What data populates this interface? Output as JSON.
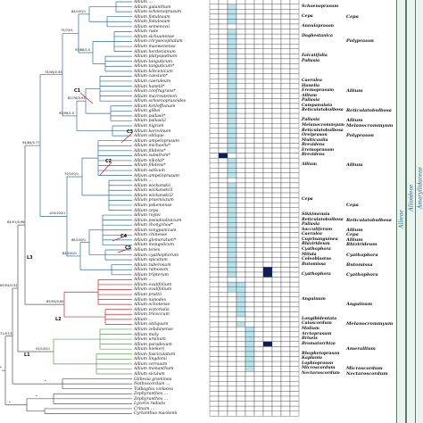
{
  "figure": {
    "taxa": [
      {
        "name": "Allium ...",
        "dark": [],
        "light": []
      },
      {
        "name": "Allium galanthum",
        "dark": [],
        "light": [
          2
        ]
      },
      {
        "name": "Allium schoenoprasum",
        "dark": [],
        "light": [
          2
        ]
      },
      {
        "name": "Allium fistulosum",
        "dark": [],
        "light": [
          2
        ]
      },
      {
        "name": "Allium fistulosum",
        "dark": [],
        "light": [
          2
        ]
      },
      {
        "name": "Allium semenovii",
        "dark": [],
        "light": []
      },
      {
        "name": "Allium rude",
        "dark": [],
        "light": [
          2
        ]
      },
      {
        "name": "Allium sichuanense",
        "dark": [],
        "light": [
          2
        ]
      },
      {
        "name": "Allium chrysocephalum",
        "dark": [],
        "light": [
          2
        ]
      },
      {
        "name": "Allium maowenense",
        "dark": [],
        "light": [
          2
        ]
      },
      {
        "name": "Allium herderianum",
        "dark": [],
        "light": [
          2
        ]
      },
      {
        "name": "Allium platyspathum",
        "dark": [],
        "light": [
          2
        ]
      },
      {
        "name": "Allium tanguticum",
        "dark": [],
        "light": [
          2
        ]
      },
      {
        "name": "Allium tanguticum*",
        "dark": [],
        "light": [
          2
        ]
      },
      {
        "name": "Allium kiltcenicum",
        "dark": [],
        "light": [
          2
        ]
      },
      {
        "name": "Allium caesium*",
        "dark": [],
        "light": [
          2
        ]
      },
      {
        "name": "Allium caeruleum",
        "dark": [],
        "light": [
          2
        ]
      },
      {
        "name": "Allium hanelii*",
        "dark": [],
        "light": [
          2
        ]
      },
      {
        "name": "Allium confragrans*",
        "dark": [],
        "light": [
          2
        ]
      },
      {
        "name": "Allium macrostemon",
        "dark": [],
        "light": [
          2
        ]
      },
      {
        "name": "Allium schoenoprasoides",
        "dark": [],
        "light": [
          2
        ]
      },
      {
        "name": "Allium kiriloffianum",
        "dark": [],
        "light": [
          2
        ]
      },
      {
        "name": "Allium gilbei",
        "dark": [],
        "light": [
          2
        ]
      },
      {
        "name": "Allium pallasii*",
        "dark": [],
        "light": [
          2
        ]
      },
      {
        "name": "Allium pallasii2",
        "dark": [],
        "light": [
          2
        ]
      },
      {
        "name": "Allium nigrum",
        "dark": [],
        "light": [
          2
        ]
      },
      {
        "name": "Allium korovinum",
        "dark": [],
        "light": [
          2
        ]
      },
      {
        "name": "Allium oblique",
        "dark": [],
        "light": [
          2
        ]
      },
      {
        "name": "Allium ampeloprasum",
        "dark": [],
        "light": [
          2
        ]
      },
      {
        "name": "Allium michaelis*",
        "dark": [],
        "light": [
          2
        ]
      },
      {
        "name": "Allium filidens*",
        "dark": [],
        "light": [
          2
        ]
      },
      {
        "name": "Allium subalrum*",
        "dark": [
          1
        ],
        "light": []
      },
      {
        "name": "Allium nikolai*",
        "dark": [],
        "light": [
          2
        ]
      },
      {
        "name": "Allium filidens*",
        "dark": [],
        "light": [
          2
        ]
      },
      {
        "name": "Allium sativum",
        "dark": [],
        "light": [
          2
        ]
      },
      {
        "name": "Allium ampeloprasum",
        "dark": [],
        "light": [
          2
        ]
      },
      {
        "name": "Allium ...",
        "dark": [],
        "light": []
      },
      {
        "name": "Allium wickanskii",
        "dark": [],
        "light": [
          2
        ]
      },
      {
        "name": "Allium wickanskii1",
        "dark": [],
        "light": [
          2
        ]
      },
      {
        "name": "Allium wickanskii2",
        "dark": [],
        "light": [
          2
        ]
      },
      {
        "name": "Allium praemixtum",
        "dark": [],
        "light": [
          2
        ]
      },
      {
        "name": "Allium pskemense",
        "dark": [],
        "light": [
          2
        ]
      },
      {
        "name": "Allium cepa",
        "dark": [],
        "light": [
          2
        ]
      },
      {
        "name": "Allium roylei",
        "dark": [],
        "light": [
          2
        ]
      },
      {
        "name": "Allium pseudoaltaicum",
        "dark": [],
        "light": [
          2
        ]
      },
      {
        "name": "Allium zhongzhoa*",
        "dark": [],
        "light": [
          2
        ]
      },
      {
        "name": "Allium songpanicum",
        "dark": [],
        "light": [
          2
        ]
      },
      {
        "name": "Allium chinense",
        "dark": [],
        "light": [
          2
        ]
      },
      {
        "name": "Allium glomeratum*",
        "dark": [],
        "light": [
          2
        ]
      },
      {
        "name": "Allium mongolicum",
        "dark": [],
        "light": [
          2
        ]
      },
      {
        "name": "Allium tenes",
        "dark": [],
        "light": [
          2
        ]
      },
      {
        "name": "Allium cyathophorum",
        "dark": [],
        "light": [
          2
        ]
      },
      {
        "name": "Allium spicatum",
        "dark": [],
        "light": [
          2
        ]
      },
      {
        "name": "Allium tuberosum",
        "dark": [],
        "light": [
          2
        ]
      },
      {
        "name": "Allium ramosum",
        "dark": [
          6
        ],
        "light": [
          2
        ]
      },
      {
        "name": "Allium tripterum",
        "dark": [
          6
        ],
        "light": [
          2
        ]
      },
      {
        "name": "Allium ...",
        "dark": [],
        "light": []
      },
      {
        "name": "Allium ovalifolium",
        "dark": [],
        "light": [
          2,
          3
        ]
      },
      {
        "name": "Allium ovalifolium",
        "dark": [],
        "light": [
          2,
          3
        ]
      },
      {
        "name": "Allium prattii",
        "dark": [],
        "light": [
          3
        ]
      },
      {
        "name": "Allium nanodes",
        "dark": [],
        "light": [
          3
        ]
      },
      {
        "name": "Allium ochotense",
        "dark": [],
        "light": [
          3
        ]
      },
      {
        "name": "Allium victorialis",
        "dark": [],
        "light": [
          3
        ]
      },
      {
        "name": "Allium tricoccum",
        "dark": [],
        "light": [
          3
        ]
      },
      {
        "name": "Allium ...",
        "dark": [],
        "light": []
      },
      {
        "name": "Allium obliquum",
        "dark": [],
        "light": [
          3
        ]
      },
      {
        "name": "Allium zebdanense",
        "dark": [],
        "light": [
          4
        ]
      },
      {
        "name": "Allium moly",
        "dark": [],
        "light": [
          4
        ]
      },
      {
        "name": "Allium ursinum",
        "dark": [],
        "light": [
          4
        ]
      },
      {
        "name": "Allium paradoxum",
        "dark": [
          6
        ],
        "light": [
          4
        ]
      },
      {
        "name": "Allium hookeri",
        "dark": [],
        "light": [
          4
        ]
      },
      {
        "name": "Allium fasciculatum",
        "dark": [],
        "light": [
          4
        ]
      },
      {
        "name": "Allium lingdonii",
        "dark": [],
        "light": [
          4
        ]
      },
      {
        "name": "Allium cernuum",
        "dark": [],
        "light": [
          4
        ]
      },
      {
        "name": "Allium monanthum",
        "dark": [],
        "light": [
          4
        ]
      },
      {
        "name": "Allium siculum",
        "dark": [],
        "light": []
      },
      {
        "name": "Gilliesia graminea",
        "dark": [],
        "light": []
      },
      {
        "name": "Nothoscordum ...",
        "dark": [],
        "light": []
      },
      {
        "name": "Tulbaghia violacea",
        "dark": [],
        "light": []
      },
      {
        "name": "Zephyranthes ...",
        "dark": [],
        "light": []
      },
      {
        "name": "Zephyranthes ...",
        "dark": [],
        "light": []
      },
      {
        "name": "Lycoris radiata",
        "dark": [],
        "light": []
      },
      {
        "name": "Crinum ...",
        "dark": [],
        "light": []
      },
      {
        "name": "Cyrtanthus mackenii",
        "dark": [],
        "light": []
      }
    ],
    "sections": [
      {
        "label": "Schoenoprasum",
        "row": 1
      },
      {
        "label": "Cepa",
        "row": 3
      },
      {
        "label": "Annuloprason",
        "row": 5
      },
      {
        "label": "Daghestanica",
        "row": 7
      },
      {
        "label": "Falcatifolia",
        "row": 11
      },
      {
        "label": "Pallasia",
        "row": 12
      },
      {
        "label": "Caerulea",
        "row": 16
      },
      {
        "label": "Hanelia",
        "row": 17
      },
      {
        "label": "Eremoprasum",
        "row": 18
      },
      {
        "label": "Allium",
        "row": 19
      },
      {
        "label": "Pallasia",
        "row": 20
      },
      {
        "label": "Campanulata",
        "row": 21
      },
      {
        "label": "Reticulatobulbosa",
        "row": 22
      },
      {
        "label": "Pallasia",
        "row": 24
      },
      {
        "label": "Melanocrommyum",
        "row": 25
      },
      {
        "label": "Reticulatobulbosa",
        "row": 26
      },
      {
        "label": "Oreiprason",
        "row": 27
      },
      {
        "label": "Multicaulia",
        "row": 28
      },
      {
        "label": "Brevidens",
        "row": 29
      },
      {
        "label": "Eremoprasum",
        "row": 30
      },
      {
        "label": "Brevidens",
        "row": 31
      },
      {
        "label": "Allium",
        "row": 33
      },
      {
        "label": "Cepa",
        "row": 40
      },
      {
        "label": "Sikkimensia",
        "row": 43
      },
      {
        "label": "Reticulatobulbosa",
        "row": 44
      },
      {
        "label": "Pallasia",
        "row": 45
      },
      {
        "label": "Sacculiferum",
        "row": 46
      },
      {
        "label": "Caerulea",
        "row": 47
      },
      {
        "label": "Cuprisanguinea",
        "row": 48
      },
      {
        "label": "Rhizirideum",
        "row": 49
      },
      {
        "label": "Cyathophora",
        "row": 50
      },
      {
        "label": "Milula",
        "row": 51
      },
      {
        "label": "Coleoblastus",
        "row": 52
      },
      {
        "label": "Butomissa",
        "row": 53
      },
      {
        "label": "Cyathophora",
        "row": 55
      },
      {
        "label": "Anguinum",
        "row": 60
      },
      {
        "label": "Longibidentata",
        "row": 64
      },
      {
        "label": "Caloscordum",
        "row": 65
      },
      {
        "label": "Molium",
        "row": 66
      },
      {
        "label": "Arctoprasum",
        "row": 67
      },
      {
        "label": "Briseis",
        "row": 68
      },
      {
        "label": "Bromatorrhiza",
        "row": 69
      },
      {
        "label": "Rhophetoprason",
        "row": 71
      },
      {
        "label": "Kaplania",
        "row": 72
      },
      {
        "label": "Lophioprason",
        "row": 73
      },
      {
        "label": "Microscordum",
        "row": 74
      },
      {
        "label": "Nectaroscordum",
        "row": 75
      }
    ],
    "subgenera": [
      {
        "label": "Cepa",
        "row": 3
      },
      {
        "label": "Polyprason",
        "row": 8
      },
      {
        "label": "Allium",
        "row": 18
      },
      {
        "label": "Reticulatobulbosa",
        "row": 22
      },
      {
        "label": "Allium",
        "row": 24
      },
      {
        "label": "Melanocrommyum",
        "row": 25
      },
      {
        "label": "Polyprason",
        "row": 27
      },
      {
        "label": "Allium",
        "row": 33
      },
      {
        "label": "Cepa",
        "row": 41
      },
      {
        "label": "Reticulatobulbosa",
        "row": 44
      },
      {
        "label": "Allium",
        "row": 46
      },
      {
        "label": "Cepa",
        "row": 47
      },
      {
        "label": "Allium",
        "row": 48
      },
      {
        "label": "Rhizirideum",
        "row": 49
      },
      {
        "label": "Cyathophora",
        "row": 51
      },
      {
        "label": "Butomissa",
        "row": 53
      },
      {
        "label": "Cyathophora",
        "row": 55
      },
      {
        "label": "Anguinum",
        "row": 61
      },
      {
        "label": "Melanocrommyum",
        "row": 65
      },
      {
        "label": "Amerallium",
        "row": 70
      },
      {
        "label": "Microscordum",
        "row": 74
      },
      {
        "label": "Nectaroscordum",
        "row": 75
      }
    ],
    "clades": {
      "c1": "C1",
      "c2": "C2",
      "c3": "C3",
      "c4": "C4",
      "c5": "C5",
      "l1": "L1",
      "l2": "L2",
      "l3": "L3"
    },
    "supports": [
      "84/100/1",
      "93/88/1.0",
      "75/73/1",
      "81/76/0.92",
      "95/98/1.0",
      "74/46/0.93",
      "70/100/1",
      "66/100/1",
      "84/100/1",
      "100/100/1",
      "94/84/0.77",
      "89/93/0.84",
      "93/100/1",
      "64/91/0.98",
      "69/94/0.52",
      "71/97/1",
      "*",
      "*",
      "*",
      "*"
    ],
    "bands": {
      "alliodeae": "Allioideae",
      "amaryllidaceae": "Amaryllidaceae",
      "allieae": "Allieae",
      "genus": "Allium"
    },
    "colors": {
      "blue_branch": "#2e6d9a",
      "red_branch": "#c62828",
      "green_branch": "#5a9a55",
      "gray_branch": "#555555",
      "light_cell": "#b9e3ec",
      "dark_cell": "#0a1f5c",
      "band_fill": "#e8f5ee"
    }
  }
}
